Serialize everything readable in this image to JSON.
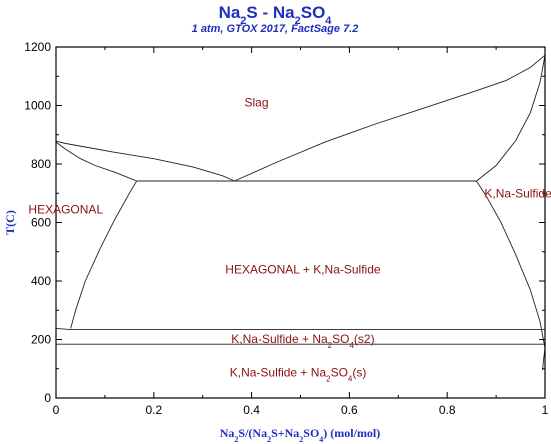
{
  "chart_data": {
    "type": "phase_diagram",
    "title_parts": [
      "Na",
      "2",
      "S - Na",
      "2",
      "SO",
      "4"
    ],
    "subtitle": "1 atm, GTOX 2017, FactSage 7.2",
    "xlabel_parts": [
      "Na",
      "2",
      "S/(Na",
      "2",
      "S+Na",
      "2",
      "SO",
      "4",
      ") (mol/mol)"
    ],
    "ylabel": "T(C)",
    "xlim": [
      0,
      1
    ],
    "ylim": [
      0,
      1200
    ],
    "xticks": [
      0,
      0.2,
      0.4,
      0.6,
      0.8,
      1
    ],
    "xtick_labels": [
      "0",
      "0.2",
      "0.4",
      "0.6",
      "0.8",
      "1"
    ],
    "yticks": [
      0,
      200,
      400,
      600,
      800,
      1000,
      1200
    ],
    "ytick_labels": [
      "0",
      "200",
      "400",
      "600",
      "800",
      "1000",
      "1200"
    ],
    "regions": [
      {
        "parts": [
          "Slag"
        ],
        "x": 0.41,
        "y": 1010,
        "anchor": "middle"
      },
      {
        "parts": [
          "HEXAGONAL"
        ],
        "x": 0.02,
        "y": 645,
        "anchor": "middle"
      },
      {
        "parts": [
          "K,Na-Sulfide"
        ],
        "x": 0.945,
        "y": 700,
        "anchor": "middle"
      },
      {
        "parts": [
          "HEXAGONAL + K,Na-Sulfide"
        ],
        "x": 0.505,
        "y": 440,
        "anchor": "middle"
      },
      {
        "parts": [
          "K,Na-Sulfide + Na",
          "2",
          "SO",
          "4",
          "(s2)"
        ],
        "x": 0.505,
        "y": 202,
        "anchor": "middle"
      },
      {
        "parts": [
          "K,Na-Sulfide + Na",
          "2",
          "SO",
          "4",
          "(s)"
        ],
        "x": 0.495,
        "y": 88,
        "anchor": "middle"
      }
    ],
    "curves": [
      {
        "name": "liquidus-upper-left",
        "points": [
          [
            0,
            878
          ],
          [
            0.02,
            870
          ],
          [
            0.06,
            858
          ],
          [
            0.12,
            840
          ],
          [
            0.2,
            818
          ],
          [
            0.28,
            790
          ],
          [
            0.34,
            760
          ],
          [
            0.365,
            742
          ]
        ]
      },
      {
        "name": "liquidus-lower-left",
        "points": [
          [
            0,
            875
          ],
          [
            0.02,
            850
          ],
          [
            0.05,
            818
          ],
          [
            0.08,
            795
          ],
          [
            0.12,
            772
          ],
          [
            0.165,
            742
          ]
        ]
      },
      {
        "name": "liquidus-right",
        "points": [
          [
            0.365,
            742
          ],
          [
            0.45,
            805
          ],
          [
            0.55,
            875
          ],
          [
            0.65,
            935
          ],
          [
            0.75,
            990
          ],
          [
            0.85,
            1045
          ],
          [
            0.92,
            1085
          ],
          [
            0.97,
            1130
          ],
          [
            1.0,
            1172
          ]
        ]
      },
      {
        "name": "liquidus-right-lower",
        "points": [
          [
            0.86,
            742
          ],
          [
            0.9,
            795
          ],
          [
            0.94,
            880
          ],
          [
            0.97,
            975
          ],
          [
            0.99,
            1080
          ],
          [
            1.0,
            1172
          ]
        ]
      },
      {
        "name": "eutectic-line",
        "points": [
          [
            0.165,
            742
          ],
          [
            0.86,
            742
          ]
        ]
      },
      {
        "name": "hexagonal-solvus",
        "points": [
          [
            0.165,
            742
          ],
          [
            0.15,
            700
          ],
          [
            0.12,
            610
          ],
          [
            0.09,
            510
          ],
          [
            0.06,
            400
          ],
          [
            0.04,
            300
          ],
          [
            0.03,
            238
          ]
        ]
      },
      {
        "name": "kna-sulfide-solvus",
        "points": [
          [
            0.86,
            742
          ],
          [
            0.88,
            690
          ],
          [
            0.91,
            600
          ],
          [
            0.94,
            490
          ],
          [
            0.97,
            370
          ],
          [
            0.99,
            260
          ],
          [
            1.0,
            170
          ]
        ]
      },
      {
        "name": "transition-line-upper",
        "points": [
          [
            0,
            238
          ],
          [
            0.03,
            234
          ],
          [
            1.0,
            234
          ]
        ]
      },
      {
        "name": "transition-line-lower",
        "points": [
          [
            0,
            184
          ],
          [
            1.0,
            184
          ]
        ]
      },
      {
        "name": "right-edge-lower",
        "points": [
          [
            1.0,
            170
          ],
          [
            0.997,
            130
          ],
          [
            0.995,
            95
          ]
        ]
      }
    ]
  }
}
